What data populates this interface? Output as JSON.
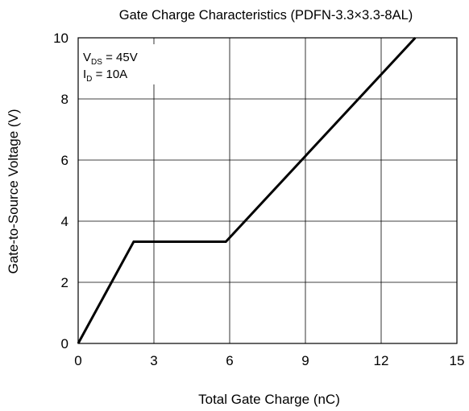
{
  "chart_data": {
    "type": "line",
    "title": "Gate Charge Characteristics (PDFN-3.3×3.3-8AL)",
    "xlabel": "Total Gate Charge (nC)",
    "ylabel": "Gate-to-Source Voltage (V)",
    "xlim": [
      0,
      15
    ],
    "ylim": [
      0,
      10
    ],
    "x_ticks": [
      0,
      3,
      6,
      9,
      12,
      15
    ],
    "y_ticks": [
      0,
      2,
      4,
      6,
      8,
      10
    ],
    "x_tick_labels": [
      "0",
      "3",
      "6",
      "9",
      "12",
      "15"
    ],
    "y_tick_labels": [
      "0",
      "2",
      "4",
      "6",
      "8",
      "10"
    ],
    "grid": true,
    "series": [
      {
        "color": "#000000",
        "x": [
          0,
          2.2,
          5.85,
          13.35
        ],
        "y": [
          0,
          3.33,
          3.33,
          10
        ]
      }
    ],
    "annotation": {
      "lines": [
        {
          "main": "V",
          "sub": "DS",
          "rest": " = 45V"
        },
        {
          "main": "I",
          "sub": "D",
          "rest": " = 10A"
        }
      ]
    }
  }
}
